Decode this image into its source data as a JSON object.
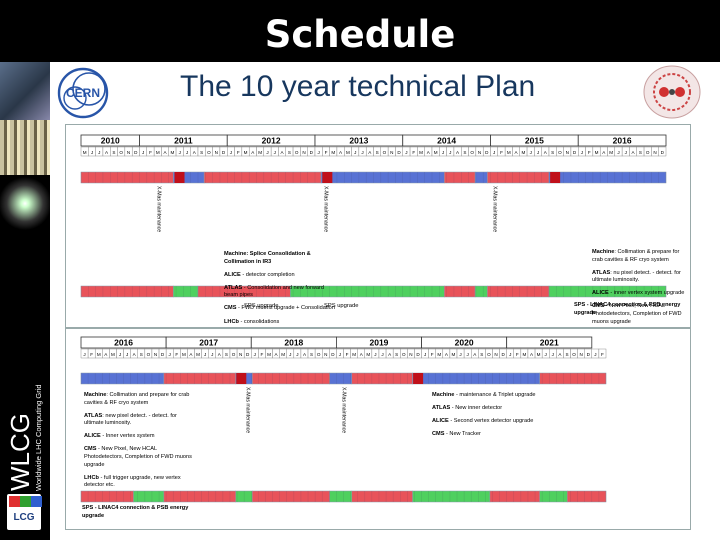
{
  "slide": {
    "title": "Schedule"
  },
  "main": {
    "title": "The 10 year technical Plan"
  },
  "logos": {
    "cern": "CERN",
    "wlcg": "WLCG",
    "wlcg_sub": "Worldwide LHC Computing Grid",
    "lcg": "LCG"
  },
  "months": [
    "J",
    "F",
    "M",
    "A",
    "M",
    "J",
    "J",
    "A",
    "S",
    "O",
    "N",
    "D"
  ],
  "colors": {
    "red": "#e8535a",
    "blue": "#5872d4",
    "green": "#4fd05f",
    "border": "#8899aa",
    "dark_red": "#c0101a"
  },
  "top_panel": {
    "years": [
      "2010",
      "2011",
      "2012",
      "2013",
      "2014",
      "2015",
      "2016"
    ],
    "first_year_months": [
      "M",
      "J",
      "J",
      "A",
      "S",
      "O",
      "N",
      "D"
    ],
    "shutdown_label": "X-Mas maintenance",
    "machine_bar": [
      [
        "red",
        0,
        0.1579
      ],
      [
        "blue",
        0.1579,
        0.2105
      ],
      [
        "red",
        0.2105,
        0.4105
      ],
      [
        "blue",
        0.4105,
        0.6211
      ],
      [
        "red",
        0.6211,
        0.6737
      ],
      [
        "blue",
        0.6737,
        0.6947
      ],
      [
        "red",
        0.6947,
        0.8
      ],
      [
        "blue",
        0.8,
        1
      ]
    ],
    "machine_markers": [
      0.1684,
      0.4211,
      0.8105
    ],
    "detector_bar": [
      [
        "red",
        0,
        0.1579
      ],
      [
        "green",
        0.1579,
        0.2
      ],
      [
        "red",
        0.2,
        0.3579
      ],
      [
        "green",
        0.3579,
        0.6211
      ],
      [
        "red",
        0.6211,
        0.6737
      ],
      [
        "green",
        0.6737,
        0.6947
      ],
      [
        "red",
        0.6947,
        0.8
      ],
      [
        "green",
        0.8,
        1
      ]
    ],
    "sps_labels": [
      "SPS upgrade",
      "SPS upgrade"
    ],
    "notes_2012": [
      {
        "bold": "Machine: Splice Consolidation &",
        "text": ""
      },
      {
        "bold": "Collimation in IR3",
        "text": ""
      },
      {
        "bold": "ALICE",
        "text": " - detector completion"
      },
      {
        "bold": "ATLAS",
        "text": " - Consolidation and new forward beam pipes"
      },
      {
        "bold": "CMS",
        "text": " - FWD muons upgrade + Consolidation"
      },
      {
        "bold": "LHCb",
        "text": " - consolidations"
      }
    ],
    "notes_2016": [
      {
        "bold": "Machine",
        "text": ": Collimation & prepare for crab cavities & RF cryo system"
      },
      {
        "bold": "ATLAS",
        "text": ": nu pixel detect. - detect. for ultimate luminosity."
      },
      {
        "bold": "ALICE",
        "text": " - inner vertex system upgrade"
      },
      {
        "bold": "CMS",
        "text": " - New Pixel, New HCAL Photodetectors, Completion of FWD muons upgrade"
      },
      {
        "bold": "LHCb",
        "text": " - full trigger upgrade, new vertex detector etc."
      }
    ],
    "linac_note": "SPS - LINAC4 connection & PSB energy upgrade"
  },
  "bottom_panel": {
    "years": [
      "2016",
      "2017",
      "2018",
      "2019",
      "2020",
      "2021"
    ],
    "shutdown_label": "X-Mas maintenance",
    "machine_bar": [
      [
        "blue",
        0,
        0.1579
      ],
      [
        "red",
        0.1579,
        0.2947
      ],
      [
        "blue",
        0.2947,
        0.3263
      ],
      [
        "red",
        0.3263,
        0.4737
      ],
      [
        "blue",
        0.4737,
        0.5158
      ],
      [
        "red",
        0.5158,
        0.6316
      ],
      [
        "blue",
        0.6316,
        0.8737
      ],
      [
        "red",
        0.8737,
        1
      ]
    ],
    "machine_markers": [
      0.3053,
      0.6421
    ],
    "detector_bar": [
      [
        "red",
        0,
        0.1
      ],
      [
        "green",
        0.1,
        0.1579
      ],
      [
        "red",
        0.1579,
        0.2947
      ],
      [
        "green",
        0.2947,
        0.3263
      ],
      [
        "red",
        0.3263,
        0.4737
      ],
      [
        "green",
        0.4737,
        0.5158
      ],
      [
        "red",
        0.5158,
        0.6316
      ],
      [
        "green",
        0.6316,
        0.7789
      ],
      [
        "red",
        0.7789,
        0.8737
      ],
      [
        "green",
        0.8737,
        0.9263
      ],
      [
        "red",
        0.9263,
        1
      ]
    ],
    "notes_left": [
      {
        "bold": "Machine",
        "text": ": Collimation and prepare for crab cavities & RF cryo system"
      },
      {
        "bold": "ATLAS",
        "text": ": new pixel detect. - detect. for ultimate luminosity."
      },
      {
        "bold": "ALICE",
        "text": " - Inner vertex system"
      },
      {
        "bold": "CMS",
        "text": " - New Pixel, New HCAL Photodetectors, Completion of FWD muons upgrade"
      },
      {
        "bold": "LHCb",
        "text": " - full trigger upgrade, new vertex detector etc."
      }
    ],
    "notes_right": [
      {
        "bold": "Machine",
        "text": " - maintenance & Triplet upgrade"
      },
      {
        "bold": "ATLAS",
        "text": " - New inner detector"
      },
      {
        "bold": "ALICE",
        "text": " - Second vertex detector upgrade"
      },
      {
        "bold": "CMS",
        "text": " - New Tracker"
      }
    ],
    "linac_note": "SPS - LINAC4 connection & PSB energy upgrade"
  }
}
